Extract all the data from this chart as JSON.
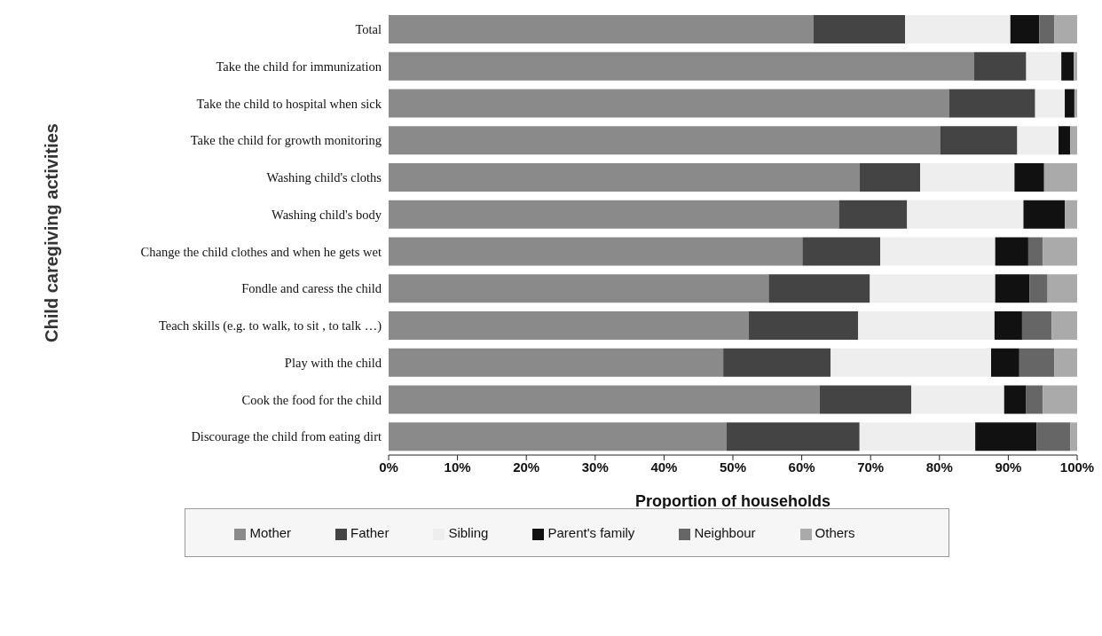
{
  "chart_data": {
    "type": "bar",
    "orientation": "horizontal",
    "stacked": true,
    "ylabel": "Child caregiving activities",
    "xlabel": "Proportion of households",
    "categories": [
      "Total",
      "Take the child for immunization",
      "Take the child to hospital when sick",
      "Take the child for growth monitoring",
      "Washing child's cloths",
      "Washing child's body",
      "Change the child clothes and when he gets wet",
      "Fondle and caress the child",
      "Teach skills (e.g. to walk, to sit , to talk …)",
      "Play with the child",
      "Cook the food for the child",
      "Discourage the child from eating dirt"
    ],
    "series": [
      {
        "name": "Mother",
        "color": "#8a8a8a",
        "values": [
          61.7,
          85.0,
          81.4,
          80.1,
          68.4,
          65.4,
          60.1,
          55.2,
          52.3,
          48.6,
          62.6,
          49.1
        ]
      },
      {
        "name": "Father",
        "color": "#444444",
        "values": [
          13.3,
          7.6,
          12.5,
          11.2,
          8.8,
          9.9,
          11.3,
          14.7,
          15.9,
          15.6,
          13.3,
          19.3
        ]
      },
      {
        "name": "Sibling",
        "color": "#eeeeee",
        "values": [
          15.3,
          5.1,
          4.3,
          6.0,
          13.7,
          16.9,
          16.7,
          18.2,
          19.8,
          23.3,
          13.5,
          16.8
        ]
      },
      {
        "name": "Parent's family",
        "color": "#111111",
        "values": [
          4.2,
          1.8,
          1.4,
          1.7,
          4.3,
          6.0,
          4.8,
          5.0,
          4.0,
          4.1,
          3.2,
          8.9
        ]
      },
      {
        "name": "Neighbour",
        "color": "#666666",
        "values": [
          2.2,
          0,
          0,
          0,
          0,
          0,
          2.1,
          2.6,
          4.3,
          5.1,
          2.4,
          4.9
        ]
      },
      {
        "name": "Others",
        "color": "#aaaaaa",
        "values": [
          3.3,
          0.5,
          0.4,
          1.0,
          4.8,
          1.8,
          5.0,
          4.3,
          3.7,
          3.3,
          5.0,
          1.0
        ]
      }
    ],
    "xlim": [
      0,
      100
    ],
    "xticks": [
      {
        "value": 0,
        "label": "0%"
      },
      {
        "value": 10,
        "label": "10%"
      },
      {
        "value": 20,
        "label": "20%"
      },
      {
        "value": 30,
        "label": "30%"
      },
      {
        "value": 40,
        "label": "40%"
      },
      {
        "value": 50,
        "label": "50%"
      },
      {
        "value": 60,
        "label": "60%"
      },
      {
        "value": 70,
        "label": "70%"
      },
      {
        "value": 80,
        "label": "80%"
      },
      {
        "value": 90,
        "label": "90%"
      },
      {
        "value": 100,
        "label": "100%"
      }
    ],
    "grid": false,
    "legend": "bottom"
  }
}
